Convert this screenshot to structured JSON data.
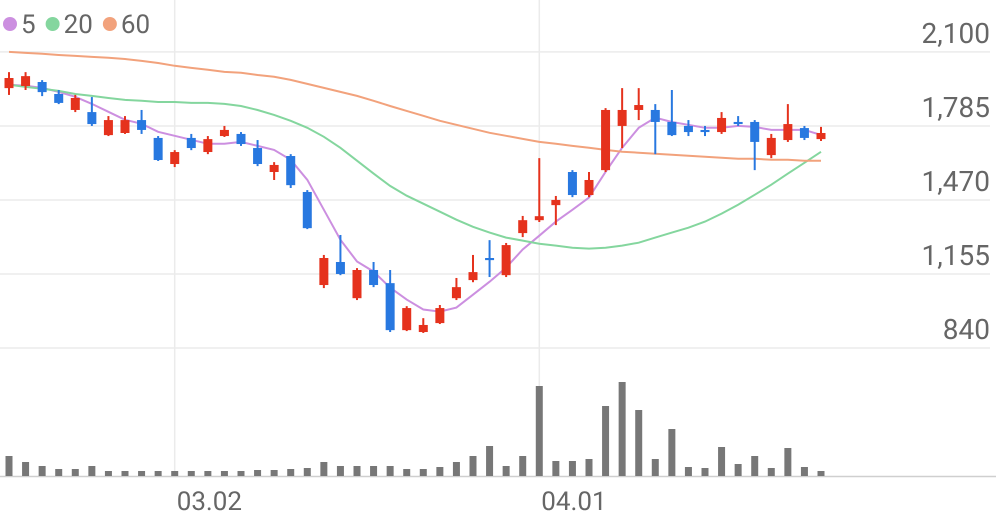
{
  "chart_data": {
    "type": "candlestick",
    "categories": [
      null,
      null,
      null,
      null,
      null,
      null,
      null,
      null,
      null,
      null,
      "03.02",
      null,
      null,
      null,
      null,
      null,
      null,
      null,
      null,
      null,
      null,
      null,
      null,
      null,
      null,
      null,
      null,
      null,
      null,
      null,
      null,
      null,
      "04.01",
      null,
      null,
      null,
      null,
      null,
      null,
      null,
      null,
      null,
      null,
      null,
      null,
      null,
      null,
      null,
      null,
      null
    ],
    "open": [
      1946,
      1955,
      1972,
      1921,
      1853,
      1844,
      1746,
      1755,
      1810,
      1734,
      1623,
      1734,
      1674,
      1742,
      1751,
      1691,
      1589,
      1657,
      1504,
      1108,
      1206,
      1052,
      1172,
      1116,
      916,
      908,
      946,
      1052,
      1129,
      1223,
      1150,
      1329,
      1384,
      1448,
      1589,
      1491,
      1597,
      1785,
      1853,
      1853,
      1802,
      1785,
      1768,
      1759,
      1802,
      1802,
      1661,
      1725,
      1776,
      1729
    ],
    "high": [
      2014,
      2014,
      1980,
      1938,
      1917,
      1908,
      1827,
      1827,
      1853,
      1742,
      1682,
      1751,
      1742,
      1785,
      1759,
      1725,
      1631,
      1665,
      1512,
      1236,
      1321,
      1180,
      1206,
      1172,
      1018,
      967,
      1023,
      1138,
      1236,
      1299,
      1287,
      1402,
      1648,
      1487,
      1597,
      1589,
      1861,
      1946,
      1946,
      1878,
      1938,
      1810,
      1785,
      1844,
      1827,
      1810,
      1751,
      1878,
      1785,
      1781
    ],
    "low": [
      1917,
      1938,
      1912,
      1878,
      1844,
      1785,
      1742,
      1751,
      1751,
      1636,
      1610,
      1682,
      1665,
      1738,
      1700,
      1614,
      1555,
      1521,
      1346,
      1095,
      1150,
      1044,
      1099,
      908,
      912,
      904,
      942,
      1044,
      1120,
      1142,
      1142,
      1312,
      1376,
      1363,
      1482,
      1482,
      1589,
      1691,
      1810,
      1665,
      1742,
      1742,
      1742,
      1751,
      1785,
      1597,
      1648,
      1717,
      1725,
      1721
    ],
    "close": [
      1989,
      1997,
      1929,
      1883,
      1904,
      1793,
      1810,
      1810,
      1768,
      1640,
      1674,
      1691,
      1729,
      1768,
      1708,
      1623,
      1619,
      1533,
      1350,
      1223,
      1155,
      1172,
      1108,
      916,
      1010,
      938,
      1010,
      1099,
      1163,
      1214,
      1278,
      1384,
      1401,
      1470,
      1491,
      1555,
      1853,
      1853,
      1874,
      1802,
      1746,
      1759,
      1759,
      1819,
      1793,
      1717,
      1734,
      1793,
      1734,
      1755
    ],
    "up_color": "#e5321d",
    "down_color": "#2878e0",
    "series": [
      {
        "name": "5",
        "color": "#cc8fe0",
        "values": [
          1960,
          1956,
          1947,
          1930,
          1909,
          1879,
          1845,
          1811,
          1794,
          1760,
          1743,
          1726,
          1709,
          1709,
          1717,
          1700,
          1683,
          1641,
          1556,
          1428,
          1301,
          1208,
          1165,
          1097,
          1046,
          1004,
          995,
          1012,
          1067,
          1122,
          1182,
          1259,
          1318,
          1378,
          1428,
          1480,
          1590,
          1692,
          1777,
          1820,
          1802,
          1790,
          1777,
          1777,
          1785,
          1781,
          1768,
          1768,
          1768,
          1747
        ]
      },
      {
        "name": "20",
        "color": "#84d69e",
        "values": [
          1960,
          1951,
          1943,
          1934,
          1921,
          1913,
          1904,
          1896,
          1892,
          1887,
          1887,
          1883,
          1883,
          1879,
          1870,
          1853,
          1832,
          1807,
          1777,
          1739,
          1692,
          1637,
          1582,
          1530,
          1488,
          1454,
          1420,
          1386,
          1356,
          1331,
          1310,
          1297,
          1284,
          1276,
          1267,
          1263,
          1267,
          1276,
          1288,
          1310,
          1331,
          1352,
          1378,
          1412,
          1450,
          1492,
          1535,
          1582,
          1628,
          1675
        ]
      },
      {
        "name": "60",
        "color": "#f2a27c",
        "values": [
          2100,
          2096,
          2092,
          2087,
          2083,
          2079,
          2075,
          2070,
          2062,
          2053,
          2041,
          2032,
          2024,
          2015,
          2011,
          2002,
          1994,
          1981,
          1964,
          1947,
          1930,
          1913,
          1892,
          1870,
          1849,
          1828,
          1807,
          1790,
          1773,
          1756,
          1743,
          1730,
          1717,
          1709,
          1700,
          1692,
          1683,
          1675,
          1671,
          1667,
          1662,
          1658,
          1654,
          1650,
          1645,
          1645,
          1641,
          1641,
          1637,
          1637
        ]
      }
    ],
    "volume": [
      20,
      14,
      10,
      7,
      7,
      10,
      5,
      5,
      5,
      5,
      5,
      5,
      5,
      5,
      5,
      6,
      6,
      7,
      8,
      14,
      10,
      10,
      10,
      10,
      7,
      7,
      9,
      14,
      20,
      30,
      10,
      20,
      90,
      15,
      15,
      17,
      70,
      94,
      66,
      17,
      47,
      9,
      8,
      29,
      12,
      20,
      8,
      28,
      9,
      5
    ],
    "volume_color": "#777777",
    "ylim": [
      840,
      2321
    ],
    "yticks": [
      {
        "value": 2100,
        "label": "2,100"
      },
      {
        "value": 1785,
        "label": "1,785"
      },
      {
        "value": 1470,
        "label": "1,470"
      },
      {
        "value": 1155,
        "label": "1,155"
      },
      840
    ],
    "grid": true
  }
}
